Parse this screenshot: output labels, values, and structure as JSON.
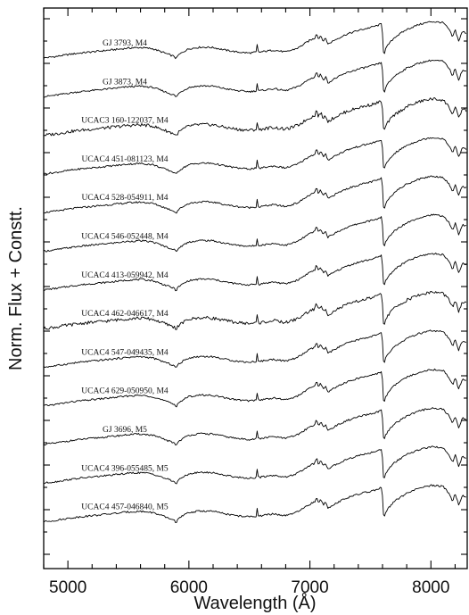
{
  "chart_data": {
    "type": "line",
    "title": "",
    "xlabel": "Wavelength (Å)",
    "ylabel": "Norm. Flux + Constt.",
    "xlim": [
      4800,
      8300
    ],
    "x_ticks": [
      5000,
      6000,
      7000,
      8000
    ],
    "grid": false,
    "legend": "none",
    "series": [
      {
        "name": "GJ 3793, M4"
      },
      {
        "name": "GJ 3873, M4"
      },
      {
        "name": "UCAC3 160-122037, M4"
      },
      {
        "name": "UCAC4 451-081123, M4"
      },
      {
        "name": "UCAC4 528-054911, M4"
      },
      {
        "name": "UCAC4 546-052448, M4"
      },
      {
        "name": "UCAC4 413-059942, M4"
      },
      {
        "name": "UCAC4 462-046617, M4"
      },
      {
        "name": "UCAC4 547-049435, M4"
      },
      {
        "name": "UCAC4 629-050950, M4"
      },
      {
        "name": "GJ 3696, M5"
      },
      {
        "name": "UCAC4 396-055485, M5"
      },
      {
        "name": "UCAC4 457-046840, M5"
      }
    ],
    "template_spectrum": {
      "x": [
        4800,
        4900,
        5000,
        5100,
        5200,
        5300,
        5400,
        5500,
        5600,
        5700,
        5800,
        5880,
        5895,
        5910,
        5950,
        6000,
        6100,
        6200,
        6300,
        6400,
        6500,
        6555,
        6563,
        6575,
        6600,
        6700,
        6800,
        6900,
        6950,
        7000,
        7040,
        7055,
        7070,
        7090,
        7110,
        7130,
        7150,
        7200,
        7300,
        7400,
        7500,
        7560,
        7595,
        7610,
        7625,
        7650,
        7700,
        7750,
        7800,
        7900,
        8000,
        8100,
        8150,
        8180,
        8200,
        8230,
        8260,
        8300
      ],
      "y": [
        0.05,
        0.12,
        0.22,
        0.3,
        0.36,
        0.42,
        0.48,
        0.55,
        0.58,
        0.52,
        0.3,
        0.12,
        0.0,
        0.18,
        0.35,
        0.52,
        0.6,
        0.58,
        0.45,
        0.35,
        0.3,
        0.34,
        0.75,
        0.32,
        0.36,
        0.45,
        0.35,
        0.55,
        0.75,
        0.95,
        1.05,
        1.35,
        1.0,
        1.2,
        0.9,
        1.05,
        0.75,
        0.95,
        1.25,
        1.45,
        1.6,
        1.7,
        1.8,
        0.15,
        0.5,
        0.75,
        1.1,
        1.3,
        1.5,
        1.75,
        1.9,
        1.85,
        1.5,
        1.1,
        1.5,
        0.9,
        1.4,
        1.3
      ]
    }
  }
}
